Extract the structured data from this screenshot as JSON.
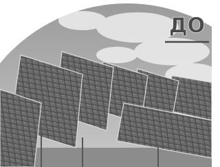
{
  "label": "ДО"
}
